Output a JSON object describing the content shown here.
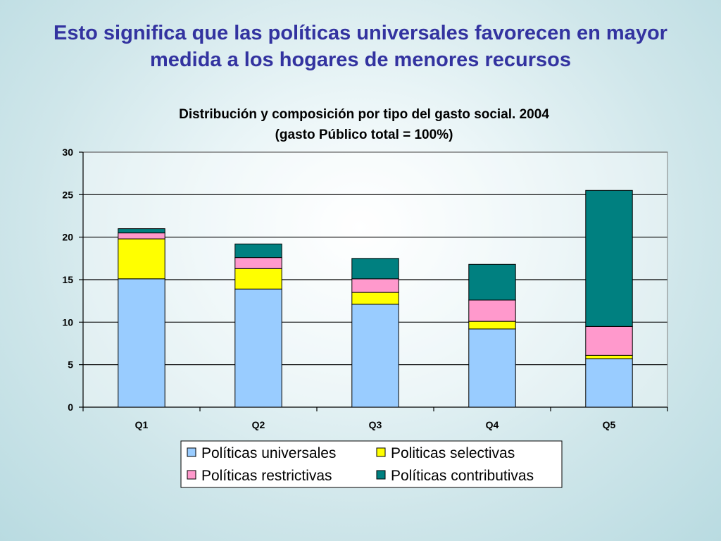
{
  "slide": {
    "title_line1": "Esto significa que las políticas universales favorecen en mayor",
    "title_line2": "medida a los hogares de menores recursos"
  },
  "colors": {
    "title": "#3333a0",
    "universales": "#99ccff",
    "selectivas": "#ffff00",
    "restrictivas": "#ff99cc",
    "contributivas": "#008080"
  },
  "chart_data": {
    "type": "bar",
    "stacked": true,
    "title": "Distribución y composición por tipo del gasto social. 2004",
    "subtitle": "(gasto Público total = 100%)",
    "xlabel": "",
    "ylabel": "",
    "categories": [
      "Q1",
      "Q2",
      "Q3",
      "Q4",
      "Q5"
    ],
    "ylim": [
      0,
      30
    ],
    "yticks": [
      0,
      5,
      10,
      15,
      20,
      25,
      30
    ],
    "grid": true,
    "legend_position": "bottom",
    "series": [
      {
        "name": "Políticas universales",
        "color": "#99ccff",
        "values": [
          15.1,
          13.9,
          12.1,
          9.2,
          5.7
        ]
      },
      {
        "name": "Politicas selectivas",
        "color": "#ffff00",
        "values": [
          4.7,
          2.4,
          1.4,
          0.9,
          0.4
        ]
      },
      {
        "name": "Políticas restrictivas",
        "color": "#ff99cc",
        "values": [
          0.7,
          1.3,
          1.6,
          2.5,
          3.4
        ]
      },
      {
        "name": "Políticas contributivas",
        "color": "#008080",
        "values": [
          0.5,
          1.6,
          2.4,
          4.2,
          16.0
        ]
      }
    ]
  }
}
